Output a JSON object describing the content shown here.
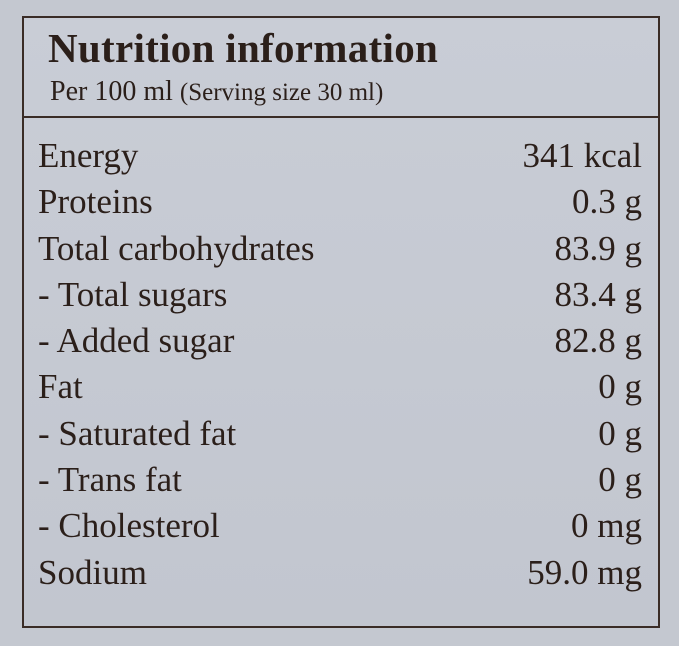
{
  "header": {
    "title": "Nutrition information",
    "per": "Per 100 ml",
    "serving": "(Serving size 30 ml)"
  },
  "table": {
    "rows": [
      [
        "Energy",
        "341 kcal"
      ],
      [
        "Proteins",
        "0.3 g"
      ],
      [
        "Total carbohydrates",
        "83.9 g"
      ],
      [
        "- Total sugars",
        "83.4 g"
      ],
      [
        "- Added sugar",
        "82.8 g"
      ],
      [
        "Fat",
        "0 g"
      ],
      [
        "- Saturated fat",
        "0 g"
      ],
      [
        "- Trans fat",
        "0 g"
      ],
      [
        "- Cholesterol",
        "0 mg"
      ],
      [
        "Sodium",
        "59.0 mg"
      ]
    ]
  }
}
